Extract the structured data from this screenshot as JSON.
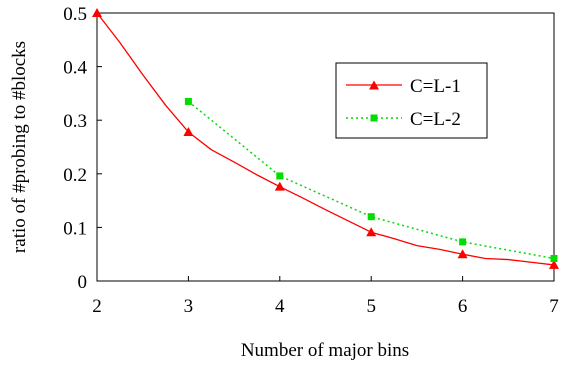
{
  "chart_data": {
    "type": "line",
    "title": "",
    "xlabel": "Number of major bins",
    "ylabel": "ratio of #probing to #blocks",
    "xlim": [
      2,
      7
    ],
    "ylim": [
      0,
      0.5
    ],
    "x_ticks": [
      "2",
      "3",
      "4",
      "5",
      "6",
      "7"
    ],
    "y_ticks": [
      "0",
      "0.1",
      "0.2",
      "0.3",
      "0.4",
      "0.5"
    ],
    "grid": false,
    "legend_position": "center-right",
    "series": [
      {
        "name": "C=L-1",
        "color": "#ff0000",
        "line_style": "solid",
        "marker": "triangle",
        "x": [
          2,
          3,
          4,
          5,
          6,
          7
        ],
        "y": [
          0.5,
          0.278,
          0.176,
          0.091,
          0.05,
          0.03
        ],
        "curve_x": [
          2,
          2.25,
          2.5,
          2.75,
          3,
          3.25,
          3.5,
          3.75,
          4,
          4.25,
          4.5,
          4.75,
          5,
          5.25,
          5.5,
          5.75,
          6,
          6.25,
          6.5,
          6.75,
          7
        ],
        "curve_y": [
          0.5,
          0.445,
          0.385,
          0.328,
          0.278,
          0.245,
          0.222,
          0.198,
          0.176,
          0.155,
          0.133,
          0.112,
          0.091,
          0.079,
          0.066,
          0.059,
          0.05,
          0.042,
          0.04,
          0.035,
          0.03
        ]
      },
      {
        "name": "C=L-2",
        "color": "#00dd00",
        "line_style": "dotted",
        "marker": "square",
        "x": [
          3,
          4,
          5,
          6,
          7
        ],
        "y": [
          0.335,
          0.196,
          0.12,
          0.073,
          0.042
        ]
      }
    ]
  }
}
